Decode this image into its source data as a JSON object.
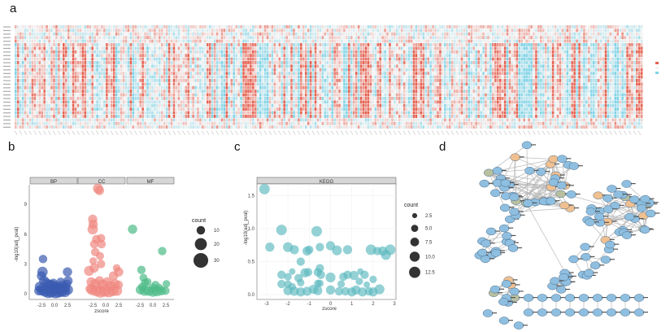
{
  "panels": {
    "a": "a",
    "b": "b",
    "c": "c",
    "d": "d"
  },
  "colors": {
    "heat_low": "#7fd3e6",
    "heat_mid": "#f4f4f4",
    "heat_high": "#e5604f",
    "BP": "#3a5bb0",
    "CC": "#f08880",
    "MF": "#4dbb88",
    "KEGG": "#5bb8bf",
    "node_blue": "#8fbfe0",
    "node_orange": "#f0c090",
    "node_olive": "#b8c0a0",
    "edge": "#b8b8b8",
    "strip": "#d6d6d6"
  },
  "chart_data": [
    {
      "type": "heatmap",
      "panel": "a",
      "note_values_illegible": true
    },
    {
      "type": "scatter",
      "panel": "b",
      "xlabel": "zscore",
      "ylabel": "-log10(adj_pval)",
      "ylim": [
        0,
        11
      ],
      "y_ticks": [
        "0",
        "3",
        "6",
        "9"
      ],
      "x_ticks": [
        "-2.5",
        "0.0",
        "2.5"
      ],
      "facets": [
        "BP",
        "CC",
        "MF"
      ],
      "legend": {
        "title": "count",
        "values": [
          10,
          20,
          30
        ],
        "placement": "right"
      },
      "series": [
        {
          "name": "BP",
          "points": [
            [
              -2.2,
              3.5,
              10
            ],
            [
              -2.3,
              2.2,
              15
            ],
            [
              -2.5,
              1.8,
              12
            ],
            [
              2.5,
              2.2,
              12
            ],
            [
              2.6,
              1.3,
              12
            ],
            [
              2.4,
              1.0,
              10
            ],
            [
              -2,
              1.3,
              14
            ],
            [
              -1.5,
              1.1,
              12
            ],
            [
              -1,
              0.9,
              15
            ],
            [
              -0.5,
              0.8,
              18
            ],
            [
              0,
              0.6,
              20
            ],
            [
              0.5,
              0.7,
              15
            ],
            [
              1,
              0.5,
              18
            ],
            [
              1.5,
              0.8,
              14
            ],
            [
              2,
              0.6,
              15
            ],
            [
              -2.8,
              0.7,
              15
            ],
            [
              -2.4,
              0.4,
              18
            ],
            [
              -1.8,
              0.3,
              20
            ],
            [
              -1.2,
              0.2,
              22
            ],
            [
              -0.6,
              0.3,
              25
            ],
            [
              0.2,
              0.2,
              24
            ],
            [
              0.8,
              0.25,
              22
            ],
            [
              1.4,
              0.3,
              20
            ],
            [
              2,
              0.2,
              16
            ],
            [
              2.6,
              0.4,
              14
            ],
            [
              -3,
              0.3,
              12
            ],
            [
              -0.2,
              1.1,
              10
            ],
            [
              1.2,
              1.2,
              10
            ]
          ]
        },
        {
          "name": "CC",
          "points": [
            [
              -1.5,
              10.6,
              14
            ],
            [
              -1.2,
              10.4,
              12
            ],
            [
              -2.5,
              7.5,
              12
            ],
            [
              -2.4,
              7,
              12
            ],
            [
              -2.5,
              6.5,
              15
            ],
            [
              -1.8,
              5.5,
              10
            ],
            [
              -0.9,
              5.6,
              10
            ],
            [
              -2.2,
              5.0,
              10
            ],
            [
              -0.8,
              5,
              10
            ],
            [
              -2.0,
              4.2,
              10
            ],
            [
              -1.1,
              3.8,
              9
            ],
            [
              -0.9,
              3.0,
              10
            ],
            [
              -2.4,
              3.3,
              8
            ],
            [
              -3.2,
              2.3,
              14
            ],
            [
              -2.2,
              2.6,
              12
            ],
            [
              2.5,
              2.2,
              12
            ],
            [
              2.1,
              2.6,
              8
            ],
            [
              1.5,
              1.8,
              12
            ],
            [
              -2.8,
              1.2,
              12
            ],
            [
              -2.0,
              1.0,
              14
            ],
            [
              -1.2,
              1.3,
              12
            ],
            [
              -0.5,
              0.9,
              15
            ],
            [
              0.3,
              1.2,
              12
            ],
            [
              1,
              0.8,
              14
            ],
            [
              1.8,
              1.0,
              12
            ],
            [
              2.5,
              0.9,
              10
            ],
            [
              -2.6,
              0.4,
              16
            ],
            [
              -1.8,
              0.3,
              18
            ],
            [
              -1,
              0.2,
              20
            ],
            [
              -0.2,
              0.3,
              20
            ],
            [
              0.6,
              0.2,
              18
            ],
            [
              1.4,
              0.3,
              16
            ],
            [
              2.2,
              0.3,
              14
            ],
            [
              -3,
              0.5,
              12
            ]
          ]
        },
        {
          "name": "MF",
          "points": [
            [
              -3.9,
              6.5,
              12
            ],
            [
              1.8,
              4.3,
              10
            ],
            [
              -2.2,
              2.4,
              10
            ],
            [
              -1.8,
              1.6,
              9
            ],
            [
              -1.5,
              1.1,
              9
            ],
            [
              -1,
              1.2,
              8
            ],
            [
              0.5,
              0.9,
              9
            ],
            [
              2.6,
              1.0,
              8
            ],
            [
              -2.4,
              0.4,
              12
            ],
            [
              -1.6,
              0.3,
              14
            ],
            [
              -0.8,
              0.3,
              14
            ],
            [
              0,
              0.2,
              14
            ],
            [
              0.8,
              0.25,
              14
            ],
            [
              1.6,
              0.3,
              12
            ],
            [
              2.4,
              0.3,
              10
            ],
            [
              -2,
              0.7,
              10
            ],
            [
              0,
              0.6,
              10
            ],
            [
              1.2,
              0.6,
              9
            ]
          ]
        }
      ]
    },
    {
      "type": "scatter",
      "panel": "c",
      "xlabel": "zscore",
      "ylabel": "-log10(adj_pval)",
      "facets": [
        "KEGG"
      ],
      "xlim": [
        -3.2,
        3.1
      ],
      "ylim": [
        -0.05,
        1.7
      ],
      "x_ticks": [
        "-3",
        "-2",
        "-1",
        "0",
        "1",
        "2",
        "3"
      ],
      "y_ticks": [
        "0.0",
        "0.5",
        "1.0",
        "1.5"
      ],
      "legend": {
        "title": "count",
        "values": [
          "2.5",
          "5.0",
          "7.5",
          "10.0",
          "12.5"
        ],
        "placement": "right"
      },
      "series": [
        {
          "name": "KEGG",
          "points": [
            [
              -3.1,
              1.6,
              8
            ],
            [
              -2.3,
              0.98,
              8
            ],
            [
              -0.65,
              0.96,
              8
            ],
            [
              -2.85,
              0.72,
              6
            ],
            [
              -2.0,
              0.72,
              7
            ],
            [
              -1.7,
              0.68,
              6
            ],
            [
              -1.1,
              0.66,
              6
            ],
            [
              -1.0,
              0.68,
              5
            ],
            [
              -0.5,
              0.72,
              5
            ],
            [
              0,
              0.74,
              6
            ],
            [
              0.3,
              0.67,
              7
            ],
            [
              0.8,
              0.68,
              6
            ],
            [
              1.9,
              0.68,
              8
            ],
            [
              2.2,
              0.66,
              5
            ],
            [
              2.45,
              0.66,
              6
            ],
            [
              2.6,
              0.6,
              7
            ],
            [
              2.8,
              0.68,
              8
            ],
            [
              -1.4,
              0.5,
              5
            ],
            [
              -0.5,
              0.4,
              5
            ],
            [
              -2.3,
              0.3,
              5
            ],
            [
              -2.0,
              0.27,
              4
            ],
            [
              -1.8,
              0.35,
              3
            ],
            [
              -1.5,
              0.25,
              5
            ],
            [
              -1.2,
              0.33,
              6
            ],
            [
              -1.05,
              0.34,
              5
            ],
            [
              -0.6,
              0.34,
              5
            ],
            [
              -0.45,
              0.3,
              5
            ],
            [
              0,
              0.26,
              7
            ],
            [
              0.6,
              0.27,
              5
            ],
            [
              0.8,
              0.3,
              5
            ],
            [
              1.1,
              0.29,
              6
            ],
            [
              1.4,
              0.35,
              3
            ],
            [
              1.6,
              0.3,
              5
            ],
            [
              2.0,
              0.23,
              4
            ],
            [
              -2.3,
              0.16,
              5
            ],
            [
              -2.0,
              0.16,
              4
            ],
            [
              -1.8,
              0.12,
              4
            ],
            [
              -1.4,
              0.18,
              4
            ],
            [
              -0.6,
              0.17,
              4
            ],
            [
              -0.5,
              0.17,
              4
            ],
            [
              0.5,
              0.16,
              4
            ],
            [
              1.35,
              0.2,
              4
            ],
            [
              1.7,
              0.15,
              3
            ],
            [
              -2.0,
              0.06,
              6
            ],
            [
              -1.7,
              0.05,
              6
            ],
            [
              -1.4,
              0.04,
              6
            ],
            [
              -1.1,
              0.05,
              6
            ],
            [
              -0.8,
              0.08,
              6
            ],
            [
              -0.6,
              0.06,
              6
            ],
            [
              0,
              0.07,
              6
            ],
            [
              0.4,
              0.05,
              5
            ],
            [
              0.7,
              0.05,
              5
            ],
            [
              1.0,
              0.04,
              6
            ],
            [
              1.2,
              0.07,
              6
            ],
            [
              1.5,
              0.04,
              6
            ],
            [
              1.8,
              0.05,
              5
            ],
            [
              2.0,
              0.04,
              6
            ],
            [
              2.3,
              0.08,
              7
            ]
          ]
        }
      ]
    }
  ]
}
